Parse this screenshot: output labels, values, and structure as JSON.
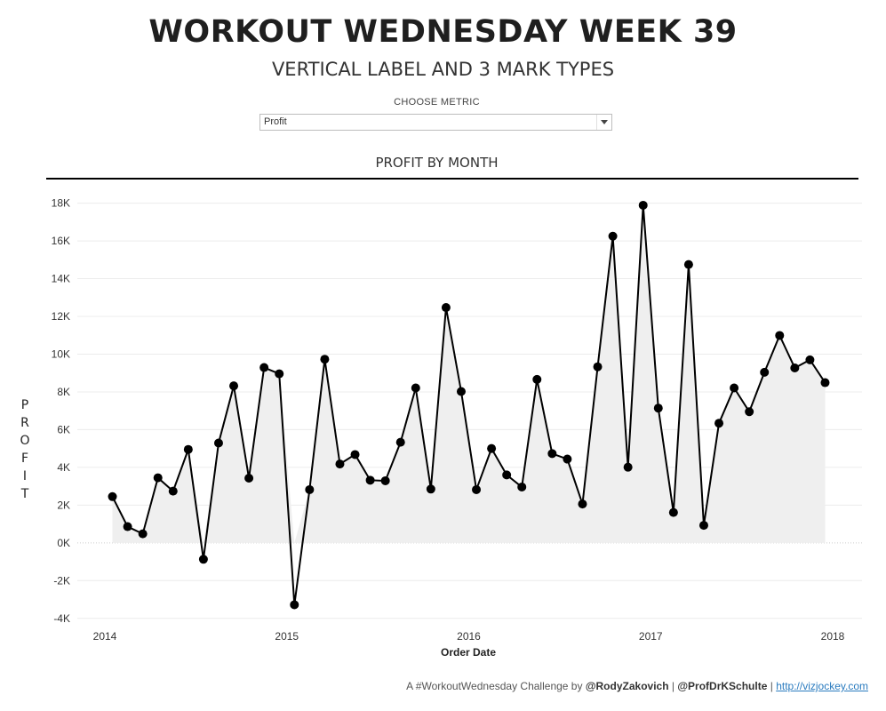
{
  "header": {
    "title": "WORKOUT WEDNESDAY WEEK 39",
    "subtitle": "VERTICAL LABEL AND 3 MARK TYPES"
  },
  "metric_control": {
    "label": "CHOOSE METRIC",
    "selected": "Profit"
  },
  "footer": {
    "prefix": "A #WorkoutWednesday Challenge by ",
    "author1": "@RodyZakovich",
    "sep1": " | ",
    "author2": "@ProfDrKSchulte",
    "sep2": " | ",
    "link": "http://vizjockey.com"
  },
  "colors": {
    "line": "#000000",
    "area": "#efefef",
    "grid": "#ececec",
    "axis_rule": "#000000"
  },
  "chart_data": {
    "type": "line",
    "title": "PROFIT BY MONTH",
    "xlabel": "Order Date",
    "ylabel": "PROFIT",
    "ylim": [
      -4200,
      18500
    ],
    "yticks": [
      -4000,
      -2000,
      0,
      2000,
      4000,
      6000,
      8000,
      10000,
      12000,
      14000,
      16000,
      18000
    ],
    "ytick_labels": [
      "-4K",
      "-2K",
      "0K",
      "2K",
      "4K",
      "6K",
      "8K",
      "10K",
      "12K",
      "14K",
      "16K",
      "18K"
    ],
    "xticks": [
      "2014",
      "2015",
      "2016",
      "2017",
      "2018"
    ],
    "grid": true,
    "mark_types": [
      "area",
      "line",
      "circle"
    ],
    "x": [
      "2014-01",
      "2014-02",
      "2014-03",
      "2014-04",
      "2014-05",
      "2014-06",
      "2014-07",
      "2014-08",
      "2014-09",
      "2014-10",
      "2014-11",
      "2014-12",
      "2015-01",
      "2015-02",
      "2015-03",
      "2015-04",
      "2015-05",
      "2015-06",
      "2015-07",
      "2015-08",
      "2015-09",
      "2015-10",
      "2015-11",
      "2015-12",
      "2016-01",
      "2016-02",
      "2016-03",
      "2016-04",
      "2016-05",
      "2016-06",
      "2016-07",
      "2016-08",
      "2016-09",
      "2016-10",
      "2016-11",
      "2016-12",
      "2017-01",
      "2017-02",
      "2017-03",
      "2017-04",
      "2017-05",
      "2017-06",
      "2017-07",
      "2017-08",
      "2017-09",
      "2017-10",
      "2017-11",
      "2017-12"
    ],
    "series": [
      {
        "values": [
          2450,
          860,
          480,
          3450,
          2740,
          4950,
          -870,
          5290,
          8320,
          3430,
          9290,
          8960,
          -3280,
          2820,
          9730,
          4180,
          4680,
          3320,
          3290,
          5330,
          8210,
          2850,
          12470,
          8020,
          2820,
          5000,
          3600,
          2960,
          8660,
          4730,
          4440,
          2060,
          9330,
          16250,
          4010,
          17890,
          7140,
          1610,
          14750,
          930,
          6340,
          8210,
          6950,
          9040,
          10990,
          9270,
          9700,
          8490
        ]
      }
    ]
  }
}
